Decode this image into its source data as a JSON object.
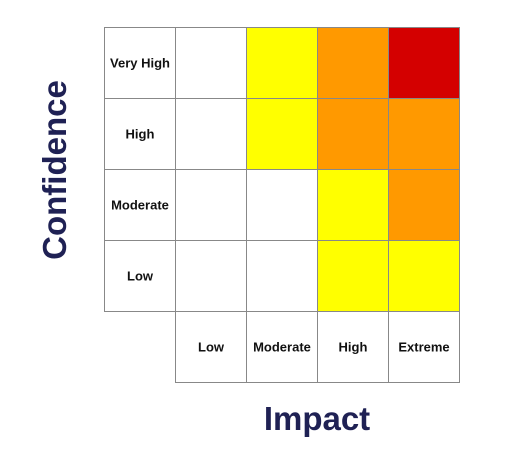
{
  "chart_data": {
    "type": "heatmap",
    "title": "",
    "xlabel": "Impact",
    "ylabel": "Confidence",
    "x_categories": [
      "Low",
      "Moderate",
      "High",
      "Extreme"
    ],
    "y_categories": [
      "Very High",
      "High",
      "Moderate",
      "Low"
    ],
    "cells": [
      [
        "none",
        "yellow",
        "orange",
        "red"
      ],
      [
        "none",
        "yellow",
        "orange",
        "orange"
      ],
      [
        "none",
        "none",
        "yellow",
        "orange"
      ],
      [
        "none",
        "none",
        "yellow",
        "yellow"
      ]
    ],
    "colors": {
      "none": "#ffffff",
      "yellow": "#ffff00",
      "orange": "#ff9900",
      "red": "#d40000",
      "grid": "#888888",
      "axis_title": "#1f2154",
      "label": "#111111"
    }
  }
}
